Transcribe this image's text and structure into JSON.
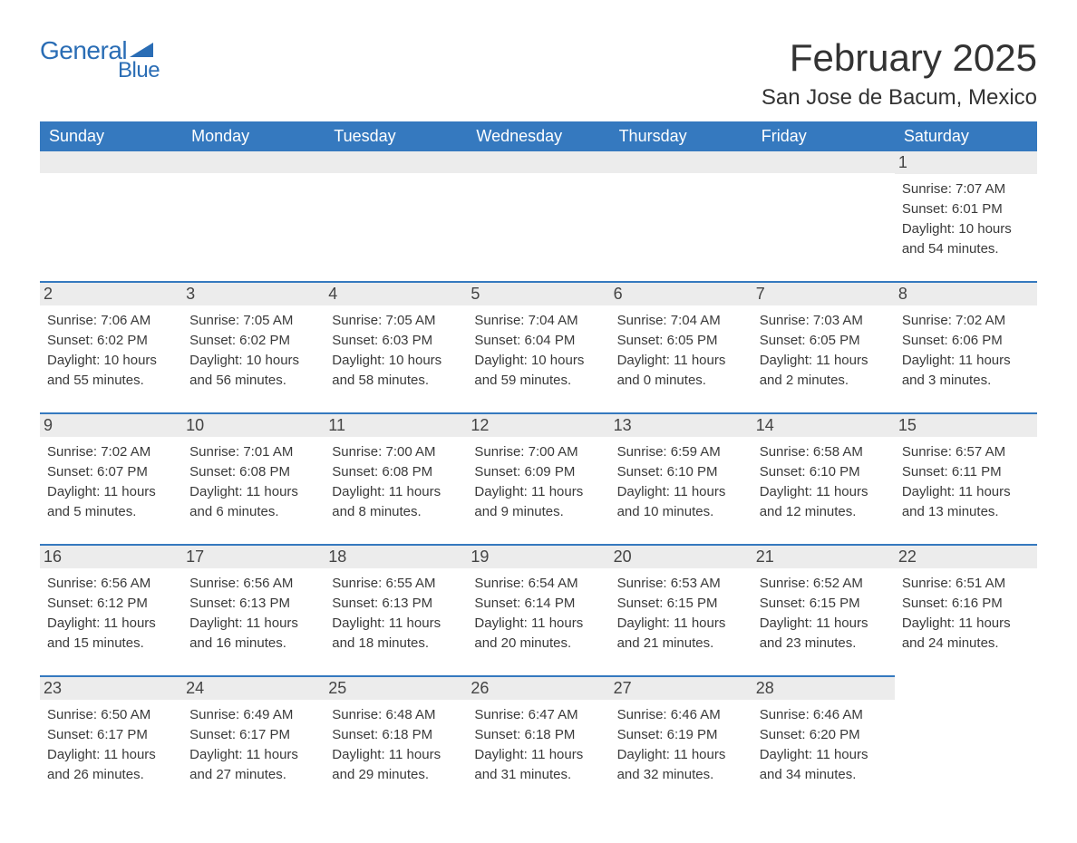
{
  "logo": {
    "text_general": "General",
    "text_blue": "Blue",
    "color": "#2a6db5"
  },
  "month_title": "February 2025",
  "location": "San Jose de Bacum, Mexico",
  "header_bg": "#3579bf",
  "header_text_color": "#ffffff",
  "daynum_bg": "#ececec",
  "border_accent": "#3579bf",
  "body_text_color": "#3a3a3a",
  "weekdays": [
    "Sunday",
    "Monday",
    "Tuesday",
    "Wednesday",
    "Thursday",
    "Friday",
    "Saturday"
  ],
  "weeks": [
    [
      null,
      null,
      null,
      null,
      null,
      null,
      {
        "n": "1",
        "sr": "Sunrise: 7:07 AM",
        "ss": "Sunset: 6:01 PM",
        "d1": "Daylight: 10 hours",
        "d2": "and 54 minutes."
      }
    ],
    [
      {
        "n": "2",
        "sr": "Sunrise: 7:06 AM",
        "ss": "Sunset: 6:02 PM",
        "d1": "Daylight: 10 hours",
        "d2": "and 55 minutes."
      },
      {
        "n": "3",
        "sr": "Sunrise: 7:05 AM",
        "ss": "Sunset: 6:02 PM",
        "d1": "Daylight: 10 hours",
        "d2": "and 56 minutes."
      },
      {
        "n": "4",
        "sr": "Sunrise: 7:05 AM",
        "ss": "Sunset: 6:03 PM",
        "d1": "Daylight: 10 hours",
        "d2": "and 58 minutes."
      },
      {
        "n": "5",
        "sr": "Sunrise: 7:04 AM",
        "ss": "Sunset: 6:04 PM",
        "d1": "Daylight: 10 hours",
        "d2": "and 59 minutes."
      },
      {
        "n": "6",
        "sr": "Sunrise: 7:04 AM",
        "ss": "Sunset: 6:05 PM",
        "d1": "Daylight: 11 hours",
        "d2": "and 0 minutes."
      },
      {
        "n": "7",
        "sr": "Sunrise: 7:03 AM",
        "ss": "Sunset: 6:05 PM",
        "d1": "Daylight: 11 hours",
        "d2": "and 2 minutes."
      },
      {
        "n": "8",
        "sr": "Sunrise: 7:02 AM",
        "ss": "Sunset: 6:06 PM",
        "d1": "Daylight: 11 hours",
        "d2": "and 3 minutes."
      }
    ],
    [
      {
        "n": "9",
        "sr": "Sunrise: 7:02 AM",
        "ss": "Sunset: 6:07 PM",
        "d1": "Daylight: 11 hours",
        "d2": "and 5 minutes."
      },
      {
        "n": "10",
        "sr": "Sunrise: 7:01 AM",
        "ss": "Sunset: 6:08 PM",
        "d1": "Daylight: 11 hours",
        "d2": "and 6 minutes."
      },
      {
        "n": "11",
        "sr": "Sunrise: 7:00 AM",
        "ss": "Sunset: 6:08 PM",
        "d1": "Daylight: 11 hours",
        "d2": "and 8 minutes."
      },
      {
        "n": "12",
        "sr": "Sunrise: 7:00 AM",
        "ss": "Sunset: 6:09 PM",
        "d1": "Daylight: 11 hours",
        "d2": "and 9 minutes."
      },
      {
        "n": "13",
        "sr": "Sunrise: 6:59 AM",
        "ss": "Sunset: 6:10 PM",
        "d1": "Daylight: 11 hours",
        "d2": "and 10 minutes."
      },
      {
        "n": "14",
        "sr": "Sunrise: 6:58 AM",
        "ss": "Sunset: 6:10 PM",
        "d1": "Daylight: 11 hours",
        "d2": "and 12 minutes."
      },
      {
        "n": "15",
        "sr": "Sunrise: 6:57 AM",
        "ss": "Sunset: 6:11 PM",
        "d1": "Daylight: 11 hours",
        "d2": "and 13 minutes."
      }
    ],
    [
      {
        "n": "16",
        "sr": "Sunrise: 6:56 AM",
        "ss": "Sunset: 6:12 PM",
        "d1": "Daylight: 11 hours",
        "d2": "and 15 minutes."
      },
      {
        "n": "17",
        "sr": "Sunrise: 6:56 AM",
        "ss": "Sunset: 6:13 PM",
        "d1": "Daylight: 11 hours",
        "d2": "and 16 minutes."
      },
      {
        "n": "18",
        "sr": "Sunrise: 6:55 AM",
        "ss": "Sunset: 6:13 PM",
        "d1": "Daylight: 11 hours",
        "d2": "and 18 minutes."
      },
      {
        "n": "19",
        "sr": "Sunrise: 6:54 AM",
        "ss": "Sunset: 6:14 PM",
        "d1": "Daylight: 11 hours",
        "d2": "and 20 minutes."
      },
      {
        "n": "20",
        "sr": "Sunrise: 6:53 AM",
        "ss": "Sunset: 6:15 PM",
        "d1": "Daylight: 11 hours",
        "d2": "and 21 minutes."
      },
      {
        "n": "21",
        "sr": "Sunrise: 6:52 AM",
        "ss": "Sunset: 6:15 PM",
        "d1": "Daylight: 11 hours",
        "d2": "and 23 minutes."
      },
      {
        "n": "22",
        "sr": "Sunrise: 6:51 AM",
        "ss": "Sunset: 6:16 PM",
        "d1": "Daylight: 11 hours",
        "d2": "and 24 minutes."
      }
    ],
    [
      {
        "n": "23",
        "sr": "Sunrise: 6:50 AM",
        "ss": "Sunset: 6:17 PM",
        "d1": "Daylight: 11 hours",
        "d2": "and 26 minutes."
      },
      {
        "n": "24",
        "sr": "Sunrise: 6:49 AM",
        "ss": "Sunset: 6:17 PM",
        "d1": "Daylight: 11 hours",
        "d2": "and 27 minutes."
      },
      {
        "n": "25",
        "sr": "Sunrise: 6:48 AM",
        "ss": "Sunset: 6:18 PM",
        "d1": "Daylight: 11 hours",
        "d2": "and 29 minutes."
      },
      {
        "n": "26",
        "sr": "Sunrise: 6:47 AM",
        "ss": "Sunset: 6:18 PM",
        "d1": "Daylight: 11 hours",
        "d2": "and 31 minutes."
      },
      {
        "n": "27",
        "sr": "Sunrise: 6:46 AM",
        "ss": "Sunset: 6:19 PM",
        "d1": "Daylight: 11 hours",
        "d2": "and 32 minutes."
      },
      {
        "n": "28",
        "sr": "Sunrise: 6:46 AM",
        "ss": "Sunset: 6:20 PM",
        "d1": "Daylight: 11 hours",
        "d2": "and 34 minutes."
      },
      null
    ]
  ]
}
